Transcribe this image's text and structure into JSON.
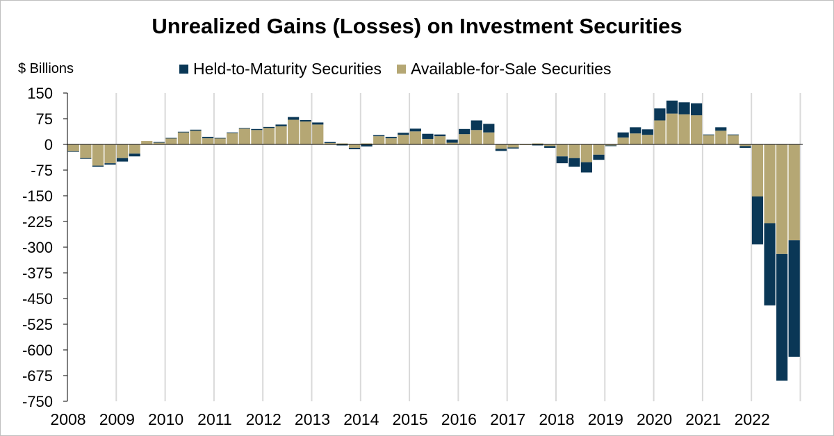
{
  "chart_data": {
    "type": "bar",
    "stacked": true,
    "title": "Unrealized Gains (Losses) on Investment Securities",
    "unit_label": "$ Billions",
    "ylim": [
      -750,
      150
    ],
    "yticks": [
      150,
      75,
      0,
      -75,
      -150,
      -225,
      -300,
      -375,
      -450,
      -525,
      -600,
      -675,
      -750
    ],
    "year_labels": [
      "2008",
      "2009",
      "2010",
      "2011",
      "2012",
      "2013",
      "2014",
      "2015",
      "2016",
      "2017",
      "2018",
      "2019",
      "2020",
      "2021",
      "2022"
    ],
    "quarters_per_year": 4,
    "legend_position": "top",
    "series": [
      {
        "name": "Held-to-Maturity Securities",
        "color": "#0a3756",
        "values": [
          -1,
          -2,
          -3,
          -4,
          -10,
          -8,
          0,
          2,
          1,
          2,
          3,
          4,
          1,
          2,
          2,
          3,
          3,
          5,
          8,
          4,
          6,
          3,
          -3,
          -4,
          -6,
          3,
          4,
          6,
          8,
          15,
          5,
          9,
          15,
          28,
          25,
          -6,
          -3,
          1,
          -3,
          -5,
          -20,
          -25,
          -30,
          -15,
          -2,
          15,
          18,
          16,
          35,
          38,
          35,
          35,
          2,
          10,
          2,
          -5,
          -140,
          -240,
          -370,
          -340
        ]
      },
      {
        "name": "Available-for-Sale Securities",
        "color": "#b5a774",
        "values": [
          -20,
          -40,
          -62,
          -55,
          -40,
          -27,
          10,
          5,
          18,
          35,
          40,
          18,
          18,
          33,
          46,
          42,
          48,
          53,
          72,
          67,
          58,
          4,
          3,
          -10,
          3,
          24,
          18,
          28,
          38,
          16,
          24,
          5,
          30,
          42,
          35,
          -13,
          -9,
          -2,
          3,
          -5,
          -35,
          -40,
          -52,
          -30,
          -3,
          20,
          32,
          28,
          70,
          90,
          88,
          85,
          27,
          40,
          27,
          -5,
          -152,
          -230,
          -320,
          -280
        ]
      }
    ]
  }
}
